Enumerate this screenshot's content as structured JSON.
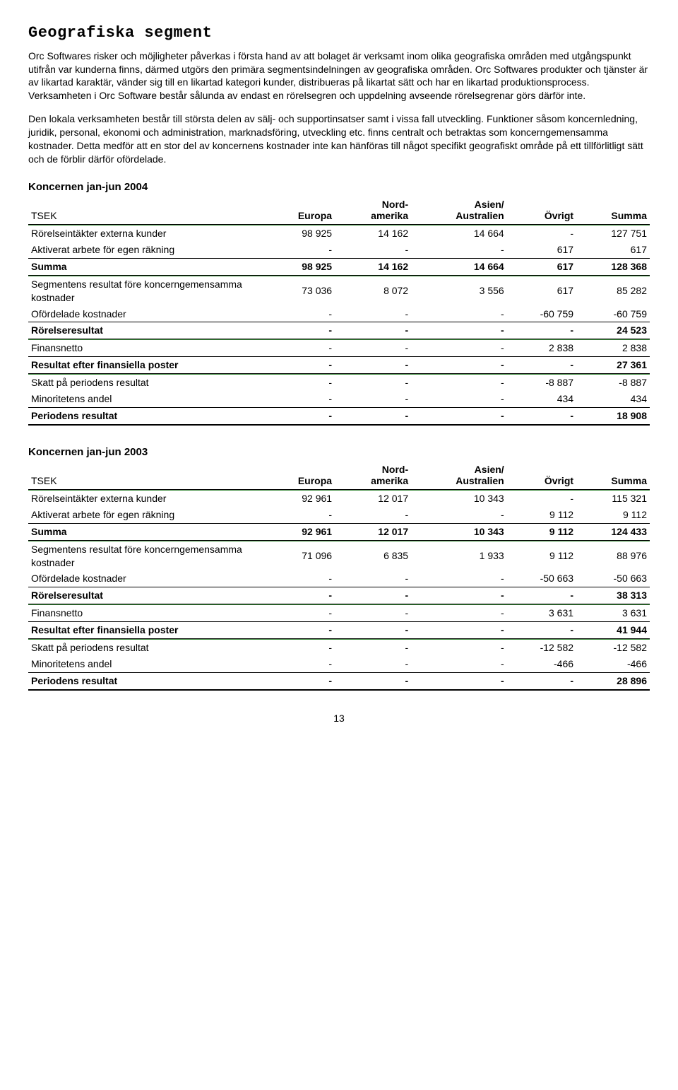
{
  "title": "Geografiska segment",
  "paragraphs": [
    "Orc Softwares risker och möjligheter påverkas i första hand av att bolaget är verksamt inom olika geografiska områden med utgångspunkt utifrån var kunderna finns, därmed utgörs den primära segmentsindelningen av geografiska områden. Orc Softwares produkter och tjänster är av likartad karaktär, vänder sig till en likartad kategori kunder, distribueras på likartat sätt och har en likartad produktionsprocess. Verksamheten i Orc Software består sålunda av endast en rörelsegren och uppdelning avseende rörelsegrenar görs därför inte.",
    "Den lokala verksamheten består till största delen av sälj- och supportinsatser samt i vissa fall utveckling. Funktioner såsom koncernledning, juridik, personal, ekonomi och administration, marknadsföring, utveckling etc. finns centralt och betraktas som koncerngemensamma kostnader. Detta medför att en stor del av koncernens kostnader inte kan hänföras till något specifikt geografiskt område på ett tillförlitligt sätt och de förblir därför ofördelade."
  ],
  "columns": {
    "unit": "TSEK",
    "c1": "Europa",
    "c2_top": "Nord-",
    "c2_bot": "amerika",
    "c3_top": "Asien/",
    "c3_bot": "Australien",
    "c4": "Övrigt",
    "c5": "Summa"
  },
  "tables": [
    {
      "caption": "Koncernen jan-jun 2004",
      "rows": [
        {
          "type": "data",
          "label": "Rörelseintäkter externa kunder",
          "v": [
            "98 925",
            "14 162",
            "14 664",
            "-",
            "127 751"
          ]
        },
        {
          "type": "data",
          "label": "Aktiverat arbete för egen räkning",
          "v": [
            "-",
            "-",
            "-",
            "617",
            "617"
          ]
        },
        {
          "type": "sum",
          "label": "Summa",
          "v": [
            "98 925",
            "14 162",
            "14 664",
            "617",
            "128 368"
          ]
        },
        {
          "type": "data",
          "label": "Segmentens resultat före koncerngemensamma kostnader",
          "v": [
            "73 036",
            "8 072",
            "3 556",
            "617",
            "85 282"
          ]
        },
        {
          "type": "data",
          "label": "Ofördelade kostnader",
          "v": [
            "-",
            "-",
            "-",
            "-60 759",
            "-60 759"
          ]
        },
        {
          "type": "sum",
          "label": "Rörelseresultat",
          "v": [
            "-",
            "-",
            "-",
            "-",
            "24 523"
          ]
        },
        {
          "type": "data",
          "label": "Finansnetto",
          "v": [
            "-",
            "-",
            "-",
            "2 838",
            "2 838"
          ]
        },
        {
          "type": "sum",
          "label": "Resultat efter finansiella poster",
          "v": [
            "-",
            "-",
            "-",
            "-",
            "27 361"
          ]
        },
        {
          "type": "data",
          "label": "Skatt på periodens resultat",
          "v": [
            "-",
            "-",
            "-",
            "-8 887",
            "-8 887"
          ]
        },
        {
          "type": "data",
          "label": "Minoritetens andel",
          "v": [
            "-",
            "-",
            "-",
            "434",
            "434"
          ]
        },
        {
          "type": "final",
          "label": "Periodens resultat",
          "v": [
            "-",
            "-",
            "-",
            "-",
            "18 908"
          ]
        }
      ]
    },
    {
      "caption": "Koncernen jan-jun 2003",
      "rows": [
        {
          "type": "data",
          "label": "Rörelseintäkter externa kunder",
          "v": [
            "92 961",
            "12 017",
            "10 343",
            "-",
            "115 321"
          ]
        },
        {
          "type": "data",
          "label": "Aktiverat arbete för egen räkning",
          "v": [
            "-",
            "-",
            "-",
            "9 112",
            "9 112"
          ]
        },
        {
          "type": "sum",
          "label": "Summa",
          "v": [
            "92 961",
            "12 017",
            "10 343",
            "9 112",
            "124 433"
          ]
        },
        {
          "type": "data",
          "label": "Segmentens resultat före koncerngemensamma kostnader",
          "v": [
            "71 096",
            "6 835",
            "1 933",
            "9 112",
            "88 976"
          ]
        },
        {
          "type": "data",
          "label": "Ofördelade kostnader",
          "v": [
            "-",
            "-",
            "-",
            "-50 663",
            "-50 663"
          ]
        },
        {
          "type": "sum",
          "label": "Rörelseresultat",
          "v": [
            "-",
            "-",
            "-",
            "-",
            "38 313"
          ]
        },
        {
          "type": "data",
          "label": "Finansnetto",
          "v": [
            "-",
            "-",
            "-",
            "3 631",
            "3 631"
          ]
        },
        {
          "type": "sum",
          "label": "Resultat efter finansiella poster",
          "v": [
            "-",
            "-",
            "-",
            "-",
            "41 944"
          ]
        },
        {
          "type": "data",
          "label": "Skatt på periodens resultat",
          "v": [
            "-",
            "-",
            "-",
            "-12 582",
            "-12 582"
          ]
        },
        {
          "type": "data",
          "label": "Minoritetens andel",
          "v": [
            "-",
            "-",
            "-",
            "-466",
            "-466"
          ]
        },
        {
          "type": "final",
          "label": "Periodens resultat",
          "v": [
            "-",
            "-",
            "-",
            "-",
            "28 896"
          ]
        }
      ]
    }
  ],
  "colors": {
    "green_rule": "#3b8a3b",
    "black": "#000000"
  },
  "page_number": "13"
}
